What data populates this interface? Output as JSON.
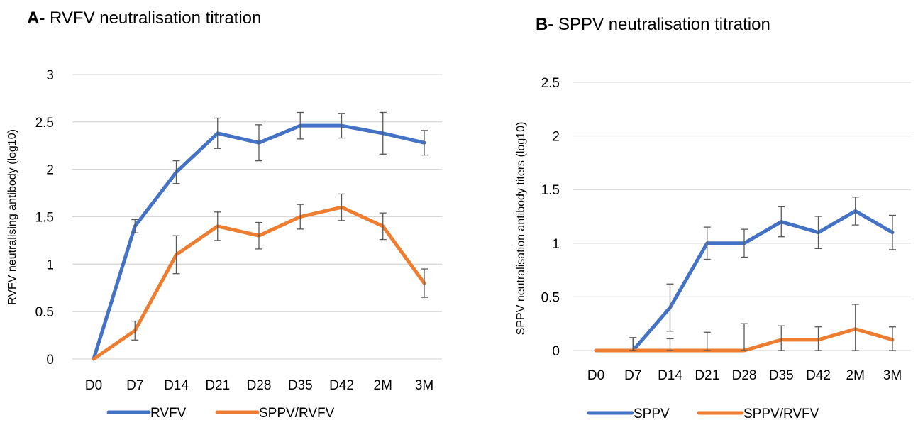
{
  "chart_data": [
    {
      "type": "line",
      "title_prefix": "A-",
      "title": "RVFV neutralisation titration",
      "ylabel": "RVFV neutralising antibody (log10)",
      "xlabel": "",
      "categories": [
        "D0",
        "D7",
        "D14",
        "D21",
        "D28",
        "D35",
        "D42",
        "2M",
        "3M"
      ],
      "ylim": [
        0,
        3
      ],
      "yticks": [
        "0",
        "0.5",
        "1",
        "1.5",
        "2",
        "2.5",
        "3"
      ],
      "grid": true,
      "legend_position": "bottom",
      "series": [
        {
          "name": "RVFV",
          "color": "#4472C4",
          "values": [
            0,
            1.4,
            1.97,
            2.38,
            2.28,
            2.46,
            2.46,
            2.38,
            2.28
          ],
          "error": [
            0,
            0.07,
            0.12,
            0.16,
            0.19,
            0.14,
            0.13,
            0.22,
            0.13
          ]
        },
        {
          "name": "SPPV/RVFV",
          "color": "#ED7D31",
          "values": [
            0,
            0.3,
            1.1,
            1.4,
            1.3,
            1.5,
            1.6,
            1.4,
            0.8
          ],
          "error": [
            0,
            0.1,
            0.2,
            0.15,
            0.14,
            0.13,
            0.14,
            0.14,
            0.15
          ]
        }
      ]
    },
    {
      "type": "line",
      "title_prefix": "B-",
      "title": "SPPV neutralisation titration",
      "ylabel": "SPPV neutralisation antibody titers (log10)",
      "xlabel": "",
      "categories": [
        "D0",
        "D7",
        "D14",
        "D21",
        "D28",
        "D35",
        "D42",
        "2M",
        "3M"
      ],
      "ylim": [
        0,
        2.5
      ],
      "yticks": [
        "0",
        "0.5",
        "1",
        "1.5",
        "2",
        "2.5"
      ],
      "grid": true,
      "legend_position": "bottom",
      "series": [
        {
          "name": "SPPV",
          "color": "#4472C4",
          "values": [
            0,
            0,
            0.4,
            1.0,
            1.0,
            1.2,
            1.1,
            1.3,
            1.1
          ],
          "error": [
            0,
            0.12,
            0.22,
            0.15,
            0.13,
            0.14,
            0.15,
            0.13,
            0.16
          ]
        },
        {
          "name": "SPPV/RVFV",
          "color": "#ED7D31",
          "values": [
            0,
            0,
            0,
            0,
            0,
            0.1,
            0.1,
            0.2,
            0.1
          ],
          "error": [
            0,
            0.12,
            0.11,
            0.17,
            0.25,
            0.13,
            0.12,
            0.23,
            0.12
          ]
        }
      ]
    }
  ]
}
